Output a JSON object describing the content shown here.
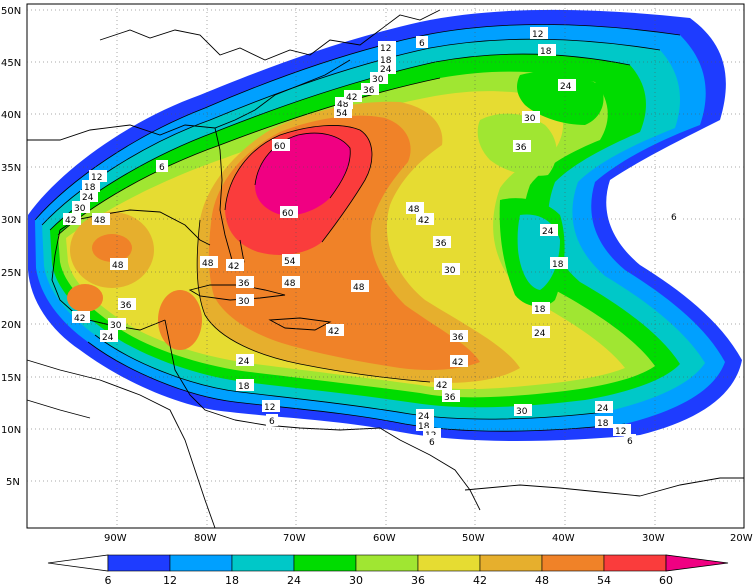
{
  "map": {
    "lat_labels": [
      "50N",
      "45N",
      "40N",
      "35N",
      "30N",
      "25N",
      "20N",
      "15N",
      "10N",
      "5N"
    ],
    "lon_labels": [
      "90W",
      "80W",
      "70W",
      "60W",
      "50W",
      "40W",
      "30W",
      "20W"
    ],
    "contour_labels": [
      "6",
      "12",
      "18",
      "24",
      "30",
      "36",
      "42",
      "48",
      "54",
      "60"
    ]
  },
  "colorbar": {
    "ticks": [
      "6",
      "12",
      "18",
      "24",
      "30",
      "36",
      "42",
      "48",
      "54",
      "60"
    ],
    "colors": [
      "#1e3cff",
      "#00a0ff",
      "#00c8c8",
      "#00dc00",
      "#a0e632",
      "#e6dc32",
      "#e6af2d",
      "#f08228",
      "#fa3c3c",
      "#f00082"
    ]
  }
}
